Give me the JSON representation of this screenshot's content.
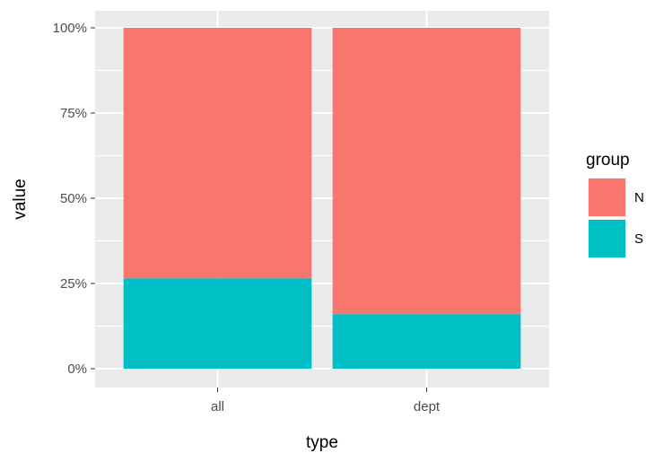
{
  "chart_data": {
    "type": "bar",
    "stacked": true,
    "position": "fill",
    "categories": [
      "all",
      "dept"
    ],
    "series": [
      {
        "name": "S",
        "values": [
          26.5,
          16
        ],
        "color": "#00BFC4"
      },
      {
        "name": "N",
        "values": [
          73.5,
          84
        ],
        "color": "#F8766D"
      }
    ],
    "xlabel": "type",
    "ylabel": "value",
    "ylim": [
      0,
      100
    ],
    "yticks": [
      0,
      25,
      50,
      75,
      100
    ],
    "ytick_labels": [
      "0%",
      "25%",
      "50%",
      "75%",
      "100%"
    ],
    "legend": {
      "title": "group",
      "placement": "right",
      "entries": [
        {
          "label": "N",
          "color": "#F8766D"
        },
        {
          "label": "S",
          "color": "#00BFC4"
        }
      ]
    },
    "grid": true,
    "panel_background": "#EBEBEB",
    "gridline_color": "#FFFFFF"
  }
}
